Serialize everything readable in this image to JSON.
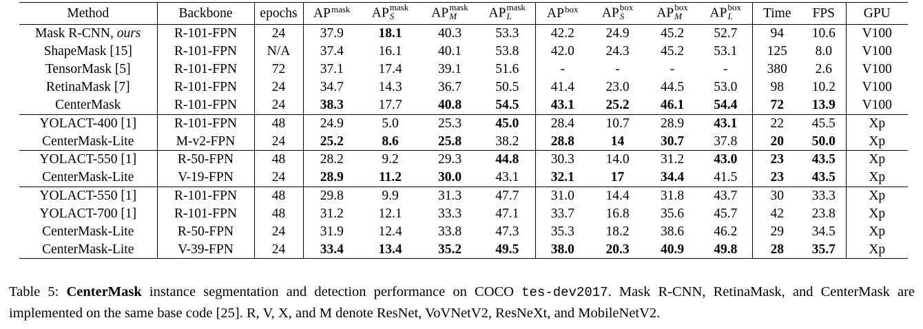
{
  "table": {
    "columns": [
      {
        "base": "Method"
      },
      {
        "base": "Backbone"
      },
      {
        "base": "epochs"
      },
      {
        "base": "AP",
        "sup": "mask"
      },
      {
        "base": "AP",
        "sup": "mask",
        "sub": "S"
      },
      {
        "base": "AP",
        "sup": "mask",
        "sub": "M"
      },
      {
        "base": "AP",
        "sup": "mask",
        "sub": "L"
      },
      {
        "base": "AP",
        "sup": "box"
      },
      {
        "base": "AP",
        "sup": "box",
        "sub": "S"
      },
      {
        "base": "AP",
        "sup": "box",
        "sub": "M"
      },
      {
        "base": "AP",
        "sup": "box",
        "sub": "L"
      },
      {
        "base": "Time"
      },
      {
        "base": "FPS"
      },
      {
        "base": "GPU"
      }
    ],
    "groups": [
      [
        {
          "method": "Mask R-CNN, ",
          "method_italic": "ours",
          "backbone": "R-101-FPN",
          "epochs": "24",
          "values": [
            "37.9",
            "18.1",
            "40.3",
            "53.3",
            "42.2",
            "24.9",
            "45.2",
            "52.7",
            "94",
            "10.6"
          ],
          "bold": [
            false,
            true,
            false,
            false,
            false,
            false,
            false,
            false,
            false,
            false
          ],
          "gpu": "V100"
        },
        {
          "method": "ShapeMask [15]",
          "backbone": "R-101-FPN",
          "epochs": "N/A",
          "values": [
            "37.4",
            "16.1",
            "40.1",
            "53.8",
            "42.0",
            "24.3",
            "45.2",
            "53.1",
            "125",
            "8.0"
          ],
          "bold": [
            false,
            false,
            false,
            false,
            false,
            false,
            false,
            false,
            false,
            false
          ],
          "gpu": "V100"
        },
        {
          "method": "TensorMask [5]",
          "backbone": "R-101-FPN",
          "epochs": "72",
          "values": [
            "37.1",
            "17.4",
            "39.1",
            "51.6",
            "-",
            "-",
            "-",
            "-",
            "380",
            "2.6"
          ],
          "bold": [
            false,
            false,
            false,
            false,
            false,
            false,
            false,
            false,
            false,
            false
          ],
          "gpu": "V100"
        },
        {
          "method": "RetinaMask [7]",
          "backbone": "R-101-FPN",
          "epochs": "24",
          "values": [
            "34.7",
            "14.3",
            "36.7",
            "50.5",
            "41.4",
            "23.0",
            "44.5",
            "53.0",
            "98",
            "10.2"
          ],
          "bold": [
            false,
            false,
            false,
            false,
            false,
            false,
            false,
            false,
            false,
            false
          ],
          "gpu": "V100"
        },
        {
          "method": "CenterMask",
          "backbone": "R-101-FPN",
          "epochs": "24",
          "values": [
            "38.3",
            "17.7",
            "40.8",
            "54.5",
            "43.1",
            "25.2",
            "46.1",
            "54.4",
            "72",
            "13.9"
          ],
          "bold": [
            true,
            false,
            true,
            true,
            true,
            true,
            true,
            true,
            true,
            true
          ],
          "gpu": "V100"
        }
      ],
      [
        {
          "method": "YOLACT-400 [1]",
          "backbone": "R-101-FPN",
          "epochs": "48",
          "values": [
            "24.9",
            "5.0",
            "25.3",
            "45.0",
            "28.4",
            "10.7",
            "28.9",
            "43.1",
            "22",
            "45.5"
          ],
          "bold": [
            false,
            false,
            false,
            true,
            false,
            false,
            false,
            true,
            false,
            false
          ],
          "gpu": "Xp"
        },
        {
          "method": "CenterMask-Lite",
          "backbone": "M-v2-FPN",
          "epochs": "24",
          "values": [
            "25.2",
            "8.6",
            "25.8",
            "38.2",
            "28.8",
            "14",
            "30.7",
            "37.8",
            "20",
            "50.0"
          ],
          "bold": [
            true,
            true,
            true,
            false,
            true,
            true,
            true,
            false,
            true,
            true
          ],
          "gpu": "Xp"
        }
      ],
      [
        {
          "method": "YOLACT-550 [1]",
          "backbone": "R-50-FPN",
          "epochs": "48",
          "values": [
            "28.2",
            "9.2",
            "29.3",
            "44.8",
            "30.3",
            "14.0",
            "31.2",
            "43.0",
            "23",
            "43.5"
          ],
          "bold": [
            false,
            false,
            false,
            true,
            false,
            false,
            false,
            true,
            true,
            true
          ],
          "gpu": "Xp"
        },
        {
          "method": "CenterMask-Lite",
          "backbone": "V-19-FPN",
          "epochs": "24",
          "values": [
            "28.9",
            "11.2",
            "30.0",
            "43.1",
            "32.1",
            "17",
            "34.4",
            "41.5",
            "23",
            "43.5"
          ],
          "bold": [
            true,
            true,
            true,
            false,
            true,
            true,
            true,
            false,
            true,
            true
          ],
          "gpu": "Xp"
        }
      ],
      [
        {
          "method": "YOLACT-550 [1]",
          "backbone": "R-101-FPN",
          "epochs": "48",
          "values": [
            "29.8",
            "9.9",
            "31.3",
            "47.7",
            "31.0",
            "14.4",
            "31.8",
            "43.7",
            "30",
            "33.3"
          ],
          "bold": [
            false,
            false,
            false,
            false,
            false,
            false,
            false,
            false,
            false,
            false
          ],
          "gpu": "Xp"
        },
        {
          "method": "YOLACT-700 [1]",
          "backbone": "R-101-FPN",
          "epochs": "48",
          "values": [
            "31.2",
            "12.1",
            "33.3",
            "47.1",
            "33.7",
            "16.8",
            "35.6",
            "45.7",
            "42",
            "23.8"
          ],
          "bold": [
            false,
            false,
            false,
            false,
            false,
            false,
            false,
            false,
            false,
            false
          ],
          "gpu": "Xp"
        },
        {
          "method": "CenterMask-Lite",
          "backbone": "R-50-FPN",
          "epochs": "24",
          "values": [
            "31.9",
            "12.4",
            "33.8",
            "47.3",
            "35.3",
            "18.2",
            "38.6",
            "46.2",
            "29",
            "34.5"
          ],
          "bold": [
            false,
            false,
            false,
            false,
            false,
            false,
            false,
            false,
            false,
            false
          ],
          "gpu": "Xp"
        },
        {
          "method": "CenterMask-Lite",
          "backbone": "V-39-FPN",
          "epochs": "24",
          "values": [
            "33.4",
            "13.4",
            "35.2",
            "49.5",
            "38.0",
            "20.3",
            "40.9",
            "49.8",
            "28",
            "35.7"
          ],
          "bold": [
            true,
            true,
            true,
            true,
            true,
            true,
            true,
            true,
            true,
            true
          ],
          "gpu": "Xp"
        }
      ]
    ]
  },
  "caption": {
    "label": "Table 5: ",
    "bold_term": "CenterMask",
    "text1": " instance segmentation and detection performance on COCO ",
    "mono": "tes-dev2017",
    "text2": ". Mask R-CNN, RetinaMask, and CenterMask are implemented on the same base code [25]. R, V, X, and M denote ResNet, VoVNetV2, ResNeXt, and MobileNetV2."
  }
}
